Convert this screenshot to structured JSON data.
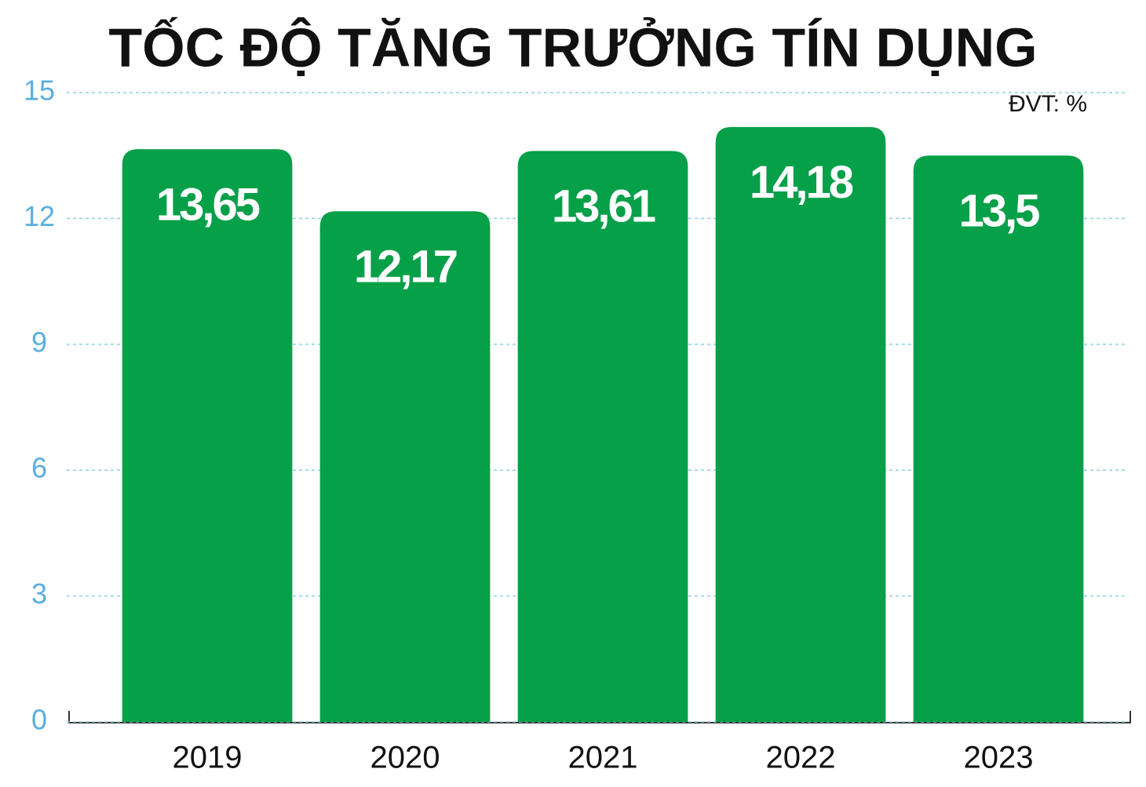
{
  "chart_data": {
    "type": "bar",
    "title": "TỐC ĐỘ TĂNG TRƯỞNG TÍN DỤNG",
    "unit": "ĐVT: %",
    "categories": [
      "2019",
      "2020",
      "2021",
      "2022",
      "2023"
    ],
    "values": [
      13.65,
      12.17,
      13.61,
      14.18,
      13.5
    ],
    "value_labels": [
      "13,65",
      "12,17",
      "13,61",
      "14,18",
      "13,5"
    ],
    "color": "#06a049",
    "ylim": [
      0,
      15
    ],
    "yticks": [
      0,
      3,
      6,
      9,
      12,
      15
    ],
    "grid": true
  }
}
